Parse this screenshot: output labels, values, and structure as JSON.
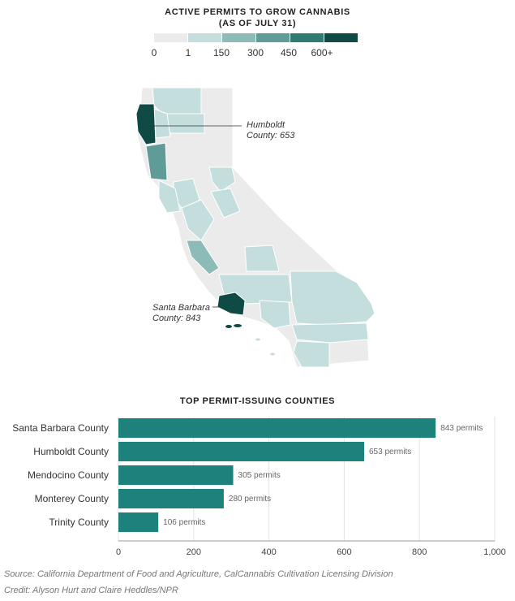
{
  "map": {
    "title_line1": "ACTIVE PERMITS TO GROW CANNABIS",
    "title_line2": "(AS OF JULY 31)",
    "legend": {
      "colors": [
        "#ebebeb",
        "#c4dedd",
        "#8cbbb8",
        "#5f9c97",
        "#2f7a72",
        "#0f4a45"
      ],
      "labels": [
        "0",
        "1",
        "150",
        "300",
        "450",
        "600+"
      ]
    },
    "callouts": {
      "humboldt_line1": "Humboldt",
      "humboldt_line2": "County: 653",
      "santa_barbara_line1": "Santa Barbara",
      "santa_barbara_line2": "County: 843"
    }
  },
  "chart_data": {
    "type": "bar",
    "orientation": "horizontal",
    "title": "TOP PERMIT-ISSUING COUNTIES",
    "categories": [
      "Santa Barbara County",
      "Humboldt County",
      "Mendocino County",
      "Monterey County",
      "Trinity County"
    ],
    "values": [
      843,
      653,
      305,
      280,
      106
    ],
    "value_labels": [
      "843 permits",
      "653 permits",
      "305 permits",
      "280 permits",
      "106 permits"
    ],
    "xlim": [
      0,
      1000
    ],
    "xticks": [
      0,
      200,
      400,
      600,
      800,
      1000
    ],
    "xtick_labels": [
      "0",
      "200",
      "400",
      "600",
      "800",
      "1,000"
    ],
    "grid": true,
    "bar_color": "#1c827b"
  },
  "footer": {
    "source": "Source: California Department of Food and Agriculture, CalCannabis Cultivation Licensing Division",
    "credit": "Credit: Alyson Hurt and Claire Heddles/NPR"
  }
}
